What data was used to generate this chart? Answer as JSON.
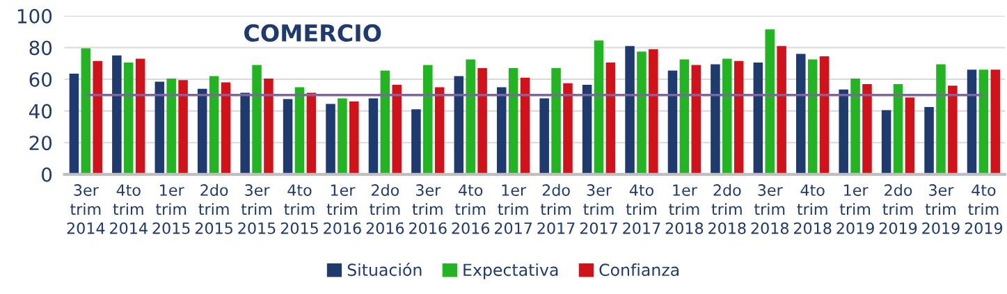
{
  "chart_data": {
    "type": "bar",
    "title": "COMERCIO",
    "categories": [
      "3er\ntrim\n2014",
      "4to\ntrim\n2014",
      "1er\ntrim\n2015",
      "2do\ntrim\n2015",
      "3er\ntrim\n2015",
      "4to\ntrim\n2015",
      "1er\ntrim\n2016",
      "2do\ntrim\n2016",
      "3er\ntrim\n2016",
      "4to\ntrim\n2016",
      "1er\ntrim\n2017",
      "2do\ntrim\n2017",
      "3er\ntrim\n2017",
      "4to\ntrim\n2017",
      "1er\ntrim\n2018",
      "2do\ntrim\n2018",
      "3er\ntrim\n2018",
      "4to\ntrim\n2018",
      "1er\ntrim\n2019",
      "2do\ntrim\n2019",
      "3er\ntrim\n2019",
      "4to\ntrim\n2019"
    ],
    "series": [
      {
        "name": "Situación",
        "color": "#1f3a6e",
        "values": [
          63.5,
          75,
          58.5,
          54,
          51.5,
          47.5,
          44.5,
          48,
          41,
          62,
          55,
          48,
          56.5,
          81,
          65.5,
          69.5,
          70.5,
          76,
          53.5,
          40.5,
          42.5,
          66
        ]
      },
      {
        "name": "Expectativa",
        "color": "#22b422",
        "values": [
          79.5,
          70.5,
          60.5,
          62,
          69,
          55,
          48,
          65.5,
          69,
          72.5,
          67,
          67,
          84.5,
          77.5,
          72.5,
          73,
          91.5,
          72.5,
          60.5,
          57,
          69.5,
          66
        ]
      },
      {
        "name": "Confianza",
        "color": "#d0121b",
        "values": [
          71.5,
          73,
          59.5,
          58,
          60.5,
          51.5,
          46,
          56.5,
          55,
          67,
          61,
          57.5,
          70.5,
          79,
          69,
          71.5,
          81,
          74.5,
          57,
          48.5,
          56,
          66
        ]
      }
    ],
    "ylim": [
      0,
      100
    ],
    "yticks": [
      0,
      20,
      40,
      60,
      80,
      100
    ],
    "grid": "y",
    "legend": "bottom",
    "ref_lines": [
      {
        "axis": "y",
        "value": 50,
        "color": "#8064a2"
      }
    ]
  }
}
